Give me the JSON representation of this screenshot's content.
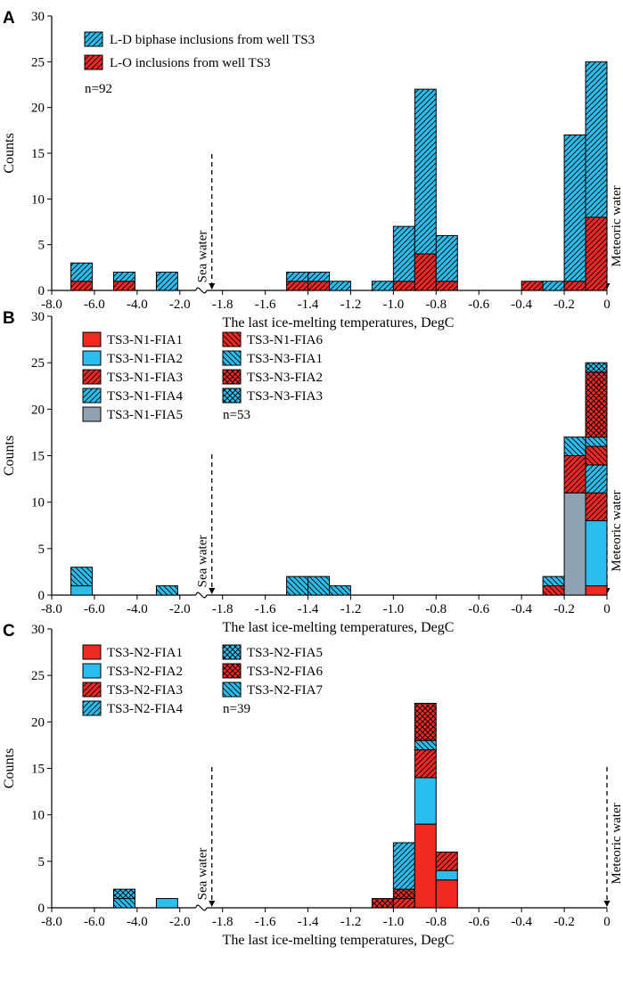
{
  "figure": {
    "colors": {
      "red": "#f02a21",
      "blue": "#2cbdef",
      "gray": "#8fa2b3",
      "outline": "#000000"
    },
    "x_tick_labels": [
      "-8.0",
      "-6.0",
      "-4.0",
      "-2.0",
      "-1.8",
      "-1.6",
      "-1.4",
      "-1.2",
      "-1.0",
      "-0.8",
      "-0.6",
      "-0.4",
      "-0.2",
      "0"
    ],
    "annotation_sea": "Sea water",
    "annotation_meteoric": "Meteoric water"
  },
  "chart_data": [
    {
      "panel": "A",
      "type": "bar",
      "stacked": true,
      "xlabel": "The last ice-melting temperatures, DegC",
      "ylabel": "Counts",
      "ylim": [
        0,
        30
      ],
      "yticks": [
        0,
        5,
        10,
        15,
        20,
        25,
        30
      ],
      "n_label": "n=92",
      "series_legend": [
        {
          "name": "L-D biphase inclusions from well TS3",
          "color": "blue",
          "pattern": "hatch-fwd"
        },
        {
          "name": "L-O  inclusions from well TS3",
          "color": "red",
          "pattern": "hatch-fwd"
        }
      ],
      "bars": [
        {
          "x": -6.6,
          "segments": [
            {
              "color": "red",
              "pattern": "hatch-fwd",
              "value": 1
            },
            {
              "color": "blue",
              "pattern": "hatch-fwd",
              "value": 2
            }
          ]
        },
        {
          "x": -4.6,
          "segments": [
            {
              "color": "red",
              "pattern": "hatch-fwd",
              "value": 1
            },
            {
              "color": "blue",
              "pattern": "hatch-fwd",
              "value": 1
            }
          ]
        },
        {
          "x": -2.6,
          "segments": [
            {
              "color": "blue",
              "pattern": "hatch-fwd",
              "value": 2
            }
          ]
        },
        {
          "x": -1.45,
          "segments": [
            {
              "color": "red",
              "pattern": "hatch-fwd",
              "value": 1
            },
            {
              "color": "blue",
              "pattern": "hatch-fwd",
              "value": 1
            }
          ]
        },
        {
          "x": -1.35,
          "segments": [
            {
              "color": "red",
              "pattern": "hatch-fwd",
              "value": 1
            },
            {
              "color": "blue",
              "pattern": "hatch-fwd",
              "value": 1
            }
          ]
        },
        {
          "x": -1.25,
          "segments": [
            {
              "color": "blue",
              "pattern": "hatch-fwd",
              "value": 1
            }
          ]
        },
        {
          "x": -1.05,
          "segments": [
            {
              "color": "blue",
              "pattern": "hatch-fwd",
              "value": 1
            }
          ]
        },
        {
          "x": -0.95,
          "segments": [
            {
              "color": "red",
              "pattern": "hatch-fwd",
              "value": 1
            },
            {
              "color": "blue",
              "pattern": "hatch-fwd",
              "value": 6
            }
          ]
        },
        {
          "x": -0.85,
          "segments": [
            {
              "color": "red",
              "pattern": "hatch-fwd",
              "value": 4
            },
            {
              "color": "blue",
              "pattern": "hatch-fwd",
              "value": 18
            }
          ]
        },
        {
          "x": -0.75,
          "segments": [
            {
              "color": "red",
              "pattern": "hatch-fwd",
              "value": 1
            },
            {
              "color": "blue",
              "pattern": "hatch-fwd",
              "value": 5
            }
          ]
        },
        {
          "x": -0.35,
          "segments": [
            {
              "color": "red",
              "pattern": "hatch-fwd",
              "value": 1
            }
          ]
        },
        {
          "x": -0.25,
          "segments": [
            {
              "color": "blue",
              "pattern": "hatch-fwd",
              "value": 1
            }
          ]
        },
        {
          "x": -0.15,
          "segments": [
            {
              "color": "red",
              "pattern": "hatch-fwd",
              "value": 1
            },
            {
              "color": "blue",
              "pattern": "hatch-fwd",
              "value": 16
            }
          ]
        },
        {
          "x": -0.05,
          "segments": [
            {
              "color": "red",
              "pattern": "hatch-fwd",
              "value": 8
            },
            {
              "color": "blue",
              "pattern": "hatch-fwd",
              "value": 17
            }
          ]
        }
      ]
    },
    {
      "panel": "B",
      "type": "bar",
      "stacked": true,
      "xlabel": "The last ice-melting temperatures, DegC",
      "ylabel": "Counts",
      "ylim": [
        0,
        30
      ],
      "yticks": [
        0,
        5,
        10,
        15,
        20,
        25,
        30
      ],
      "n_label": "n=53",
      "series_legend": [
        {
          "name": "TS3-N1-FIA1",
          "color": "red",
          "pattern": "solid"
        },
        {
          "name": "TS3-N1-FIA2",
          "color": "blue",
          "pattern": "solid"
        },
        {
          "name": "TS3-N1-FIA3",
          "color": "red",
          "pattern": "hatch-fwd"
        },
        {
          "name": "TS3-N1-FIA4",
          "color": "blue",
          "pattern": "hatch-fwd"
        },
        {
          "name": "TS3-N1-FIA5",
          "color": "gray",
          "pattern": "solid"
        },
        {
          "name": "TS3-N1-FIA6",
          "color": "red",
          "pattern": "hatch-back"
        },
        {
          "name": "TS3-N3-FIA1",
          "color": "blue",
          "pattern": "hatch-back"
        },
        {
          "name": "TS3-N3-FIA2",
          "color": "red",
          "pattern": "cross"
        },
        {
          "name": "TS3-N3-FIA3",
          "color": "blue",
          "pattern": "cross"
        }
      ],
      "bars": [
        {
          "x": -6.6,
          "segments": [
            {
              "color": "blue",
              "pattern": "solid",
              "value": 1
            },
            {
              "color": "blue",
              "pattern": "hatch-back",
              "value": 2
            }
          ]
        },
        {
          "x": -2.6,
          "segments": [
            {
              "color": "blue",
              "pattern": "hatch-back",
              "value": 1
            }
          ]
        },
        {
          "x": -1.45,
          "segments": [
            {
              "color": "blue",
              "pattern": "hatch-back",
              "value": 2
            }
          ]
        },
        {
          "x": -1.35,
          "segments": [
            {
              "color": "blue",
              "pattern": "hatch-back",
              "value": 2
            }
          ]
        },
        {
          "x": -1.25,
          "segments": [
            {
              "color": "blue",
              "pattern": "hatch-back",
              "value": 1
            }
          ]
        },
        {
          "x": -0.25,
          "segments": [
            {
              "color": "red",
              "pattern": "hatch-back",
              "value": 1
            },
            {
              "color": "blue",
              "pattern": "hatch-back",
              "value": 1
            }
          ]
        },
        {
          "x": -0.15,
          "segments": [
            {
              "color": "gray",
              "pattern": "solid",
              "value": 11
            },
            {
              "color": "red",
              "pattern": "hatch-fwd",
              "value": 4
            },
            {
              "color": "blue",
              "pattern": "hatch-back",
              "value": 2
            }
          ]
        },
        {
          "x": -0.05,
          "segments": [
            {
              "color": "red",
              "pattern": "solid",
              "value": 1
            },
            {
              "color": "blue",
              "pattern": "solid",
              "value": 7
            },
            {
              "color": "red",
              "pattern": "hatch-fwd",
              "value": 3
            },
            {
              "color": "blue",
              "pattern": "hatch-fwd",
              "value": 3
            },
            {
              "color": "red",
              "pattern": "hatch-back",
              "value": 2
            },
            {
              "color": "blue",
              "pattern": "hatch-back",
              "value": 1
            },
            {
              "color": "red",
              "pattern": "cross",
              "value": 7
            },
            {
              "color": "blue",
              "pattern": "cross",
              "value": 1
            }
          ]
        }
      ]
    },
    {
      "panel": "C",
      "type": "bar",
      "stacked": true,
      "xlabel": "The last ice-melting temperatures, DegC",
      "ylabel": "Counts",
      "ylim": [
        0,
        30
      ],
      "yticks": [
        0,
        5,
        10,
        15,
        20,
        25,
        30
      ],
      "n_label": "n=39",
      "series_legend": [
        {
          "name": "TS3-N2-FIA1",
          "color": "red",
          "pattern": "solid"
        },
        {
          "name": "TS3-N2-FIA2",
          "color": "blue",
          "pattern": "solid"
        },
        {
          "name": "TS3-N2-FIA3",
          "color": "red",
          "pattern": "hatch-fwd"
        },
        {
          "name": "TS3-N2-FIA4",
          "color": "blue",
          "pattern": "hatch-fwd"
        },
        {
          "name": "TS3-N2-FIA5",
          "color": "blue",
          "pattern": "cross"
        },
        {
          "name": "TS3-N2-FIA6",
          "color": "red",
          "pattern": "cross"
        },
        {
          "name": "TS3-N2-FIA7",
          "color": "blue",
          "pattern": "hatch-back"
        }
      ],
      "bars": [
        {
          "x": -4.6,
          "segments": [
            {
              "color": "blue",
              "pattern": "hatch-back",
              "value": 1
            },
            {
              "color": "blue",
              "pattern": "cross",
              "value": 1
            }
          ]
        },
        {
          "x": -2.6,
          "segments": [
            {
              "color": "blue",
              "pattern": "solid",
              "value": 1
            }
          ]
        },
        {
          "x": -1.05,
          "segments": [
            {
              "color": "red",
              "pattern": "cross",
              "value": 1
            }
          ]
        },
        {
          "x": -0.95,
          "segments": [
            {
              "color": "red",
              "pattern": "hatch-fwd",
              "value": 1
            },
            {
              "color": "red",
              "pattern": "cross",
              "value": 1
            },
            {
              "color": "blue",
              "pattern": "hatch-fwd",
              "value": 5
            }
          ]
        },
        {
          "x": -0.85,
          "segments": [
            {
              "color": "red",
              "pattern": "solid",
              "value": 9
            },
            {
              "color": "blue",
              "pattern": "solid",
              "value": 5
            },
            {
              "color": "red",
              "pattern": "hatch-fwd",
              "value": 3
            },
            {
              "color": "blue",
              "pattern": "hatch-back",
              "value": 1
            },
            {
              "color": "red",
              "pattern": "cross",
              "value": 4
            }
          ]
        },
        {
          "x": -0.75,
          "segments": [
            {
              "color": "red",
              "pattern": "solid",
              "value": 3
            },
            {
              "color": "blue",
              "pattern": "solid",
              "value": 1
            },
            {
              "color": "red",
              "pattern": "hatch-fwd",
              "value": 2
            }
          ]
        }
      ]
    }
  ]
}
